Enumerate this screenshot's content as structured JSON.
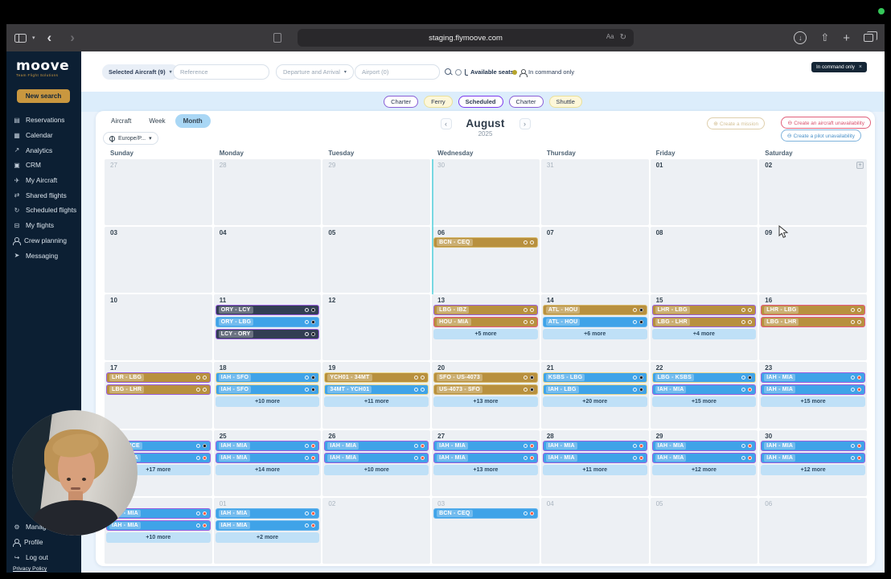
{
  "browser": {
    "url": "staging.flymoove.com"
  },
  "sidebar": {
    "logo": "moove",
    "tagline": "Team Flight Solutions",
    "new_search_label": "New search",
    "items": [
      {
        "label": "Reservations",
        "icon": "reservations-icon",
        "glyph": "▤"
      },
      {
        "label": "Calendar",
        "icon": "calendar-icon",
        "glyph": "▦"
      },
      {
        "label": "Analytics",
        "icon": "analytics-icon",
        "glyph": "↗"
      },
      {
        "label": "CRM",
        "icon": "crm-icon",
        "glyph": "▣"
      },
      {
        "label": "My Aircraft",
        "icon": "my-aircraft-icon",
        "glyph": "✈"
      },
      {
        "label": "Shared flights",
        "icon": "shared-flights-icon",
        "glyph": "⇄"
      },
      {
        "label": "Scheduled flights",
        "icon": "scheduled-flights-icon",
        "glyph": "↻"
      },
      {
        "label": "My flights",
        "icon": "my-flights-icon",
        "glyph": "⊟"
      },
      {
        "label": "Crew planning",
        "icon": "crew-planning-icon",
        "glyph": ""
      },
      {
        "label": "Messaging",
        "icon": "messaging-icon",
        "glyph": "➤"
      }
    ],
    "footer_items": [
      {
        "label": "Manage",
        "icon": "gear-icon",
        "glyph": "⚙"
      },
      {
        "label": "Profile",
        "icon": "profile-icon",
        "glyph": ""
      },
      {
        "label": "Log out",
        "icon": "logout-icon",
        "glyph": "↪"
      }
    ],
    "privacy_policy": "Privacy Policy"
  },
  "filters": {
    "selected_aircraft": "Selected Aircraft (9)",
    "reference_placeholder": "Reference",
    "departure_arrival": "Departure and Arrival",
    "airport_placeholder": "Airport (0)",
    "available_seats": "Available seats",
    "in_command_only": "In command only",
    "active_filter_chip": "In command only",
    "chip_close": "×"
  },
  "type_pills": [
    {
      "label": "Charter",
      "variant": "purple"
    },
    {
      "label": "Ferry",
      "variant": "yellow"
    },
    {
      "label": "Scheduled",
      "variant": "purple-active"
    },
    {
      "label": "Charter",
      "variant": "purple"
    },
    {
      "label": "Shuttle",
      "variant": "yellow"
    }
  ],
  "calendar_toolbar": {
    "view_tabs": [
      "Aircraft",
      "Week",
      "Month"
    ],
    "active_view": "Month",
    "timezone": "Europe/P...",
    "month": "August",
    "year": "2025",
    "create_mission": "Create a mission",
    "create_aircraft_unavailability": "Create an aircraft unavailability",
    "create_pilot_unavailability": "Create a pilot unavailability"
  },
  "calendar": {
    "day_headers": [
      "Sunday",
      "Monday",
      "Tuesday",
      "Wednesday",
      "Thursday",
      "Friday",
      "Saturday"
    ],
    "weeks": [
      [
        {
          "date": "27",
          "other": true
        },
        {
          "date": "28",
          "other": true
        },
        {
          "date": "29",
          "other": true
        },
        {
          "date": "30",
          "other": true
        },
        {
          "date": "31",
          "other": true
        },
        {
          "date": "01"
        },
        {
          "date": "02",
          "add_icon": true
        }
      ],
      [
        {
          "date": "03"
        },
        {
          "date": "04"
        },
        {
          "date": "05"
        },
        {
          "date": "06",
          "events": [
            {
              "label": "BCN - CEQ",
              "bg": "gold",
              "border": "goldlight",
              "dot": "white"
            }
          ]
        },
        {
          "date": "07"
        },
        {
          "date": "08"
        },
        {
          "date": "09"
        }
      ],
      [
        {
          "date": "10"
        },
        {
          "date": "11",
          "events": [
            {
              "label": "ORY - LCY",
              "bg": "navy",
              "border": "purple",
              "dot": "dark"
            },
            {
              "label": "ORY - LBG",
              "bg": "blue",
              "border": "blue",
              "dot": "dark"
            },
            {
              "label": "LCY - ORY",
              "bg": "navy",
              "border": "purple",
              "dot": "dark"
            }
          ]
        },
        {
          "date": "12"
        },
        {
          "date": "13",
          "events": [
            {
              "label": "LBG - IBZ",
              "bg": "gold",
              "border": "purple",
              "dot": "white"
            },
            {
              "label": "HOU - MIA",
              "bg": "gold",
              "border": "pink",
              "dot": "white"
            }
          ],
          "more": "+5 more"
        },
        {
          "date": "14",
          "events": [
            {
              "label": "ATL - HOU",
              "bg": "gold",
              "border": "goldlight",
              "dot": "dark"
            },
            {
              "label": "ATL - HOU",
              "bg": "blue",
              "border": "blue",
              "dot": "dark"
            }
          ],
          "more": "+6 more"
        },
        {
          "date": "15",
          "events": [
            {
              "label": "LHR - LBG",
              "bg": "gold",
              "border": "purple",
              "dot": "white"
            },
            {
              "label": "LBG - LHR",
              "bg": "gold",
              "border": "purple",
              "dot": "white"
            }
          ],
          "more": "+4 more"
        },
        {
          "date": "16",
          "events": [
            {
              "label": "LHR - LBG",
              "bg": "gold",
              "border": "pink",
              "dot": "white"
            },
            {
              "label": "LBG - LHR",
              "bg": "gold",
              "border": "pink",
              "dot": "white"
            }
          ]
        }
      ],
      [
        {
          "date": "17",
          "events": [
            {
              "label": "LHR - LBG",
              "bg": "gold",
              "border": "purple",
              "dot": "white"
            },
            {
              "label": "LBG - LHR",
              "bg": "gold",
              "border": "purple",
              "dot": "white"
            }
          ]
        },
        {
          "date": "18",
          "events": [
            {
              "label": "IAH - SFO",
              "bg": "blue",
              "border": "yellow",
              "dot": "dark"
            },
            {
              "label": "IAH - SFO",
              "bg": "blue",
              "border": "yellow",
              "dot": "dark"
            }
          ],
          "more": "+10 more"
        },
        {
          "date": "19",
          "events": [
            {
              "label": "YCH01 - 34MT",
              "bg": "gold",
              "border": "yellow",
              "dot": "white"
            },
            {
              "label": "34MT - YCH01",
              "bg": "blue",
              "border": "yellow",
              "dot": "white"
            }
          ],
          "more": "+11 more"
        },
        {
          "date": "20",
          "events": [
            {
              "label": "SFO - US-4073",
              "bg": "gold",
              "border": "goldlight",
              "dot": "dark"
            },
            {
              "label": "US-4073 - SFO",
              "bg": "gold",
              "border": "goldlight",
              "dot": "dark"
            }
          ],
          "more": "+13 more"
        },
        {
          "date": "21",
          "events": [
            {
              "label": "KSBS - LBG",
              "bg": "blue",
              "border": "yellow",
              "dot": "dark"
            },
            {
              "label": "IAH - LBG",
              "bg": "blue",
              "border": "yellow",
              "dot": "dark"
            }
          ],
          "more": "+20 more"
        },
        {
          "date": "22",
          "events": [
            {
              "label": "LBG - KSBS",
              "bg": "blue",
              "border": "yellow",
              "dot": "dark"
            },
            {
              "label": "IAH - MIA",
              "bg": "blue",
              "border": "purple",
              "dot": "red"
            }
          ],
          "more": "+15 more"
        },
        {
          "date": "23",
          "events": [
            {
              "label": "IAH - MIA",
              "bg": "blue",
              "border": "purple",
              "dot": "red"
            },
            {
              "label": "IAH - MIA",
              "bg": "blue",
              "border": "purple",
              "dot": "red"
            }
          ],
          "more": "+15 more"
        }
      ],
      [
        {
          "date": "24",
          "events": [
            {
              "label": "IAH - NCE",
              "bg": "blue",
              "border": "purple",
              "dot": "dark"
            },
            {
              "label": "IAH - MIA",
              "bg": "blue",
              "border": "purple",
              "dot": "red"
            }
          ],
          "more": "+17 more"
        },
        {
          "date": "25",
          "events": [
            {
              "label": "IAH - MIA",
              "bg": "blue",
              "border": "purple",
              "dot": "red"
            },
            {
              "label": "IAH - MIA",
              "bg": "blue",
              "border": "purple",
              "dot": "red"
            }
          ],
          "more": "+14 more"
        },
        {
          "date": "26",
          "events": [
            {
              "label": "IAH - MIA",
              "bg": "blue",
              "border": "purple",
              "dot": "red"
            },
            {
              "label": "IAH - MIA",
              "bg": "blue",
              "border": "purple",
              "dot": "red"
            }
          ],
          "more": "+10 more"
        },
        {
          "date": "27",
          "events": [
            {
              "label": "IAH - MIA",
              "bg": "blue",
              "border": "purple",
              "dot": "red"
            },
            {
              "label": "IAH - MIA",
              "bg": "blue",
              "border": "purple",
              "dot": "red"
            }
          ],
          "more": "+13 more"
        },
        {
          "date": "28",
          "events": [
            {
              "label": "IAH - MIA",
              "bg": "blue",
              "border": "purple",
              "dot": "red"
            },
            {
              "label": "IAH - MIA",
              "bg": "blue",
              "border": "purple",
              "dot": "red"
            }
          ],
          "more": "+11 more"
        },
        {
          "date": "29",
          "events": [
            {
              "label": "IAH - MIA",
              "bg": "blue",
              "border": "purple",
              "dot": "red"
            },
            {
              "label": "IAH - MIA",
              "bg": "blue",
              "border": "purple",
              "dot": "red"
            }
          ],
          "more": "+12 more"
        },
        {
          "date": "30",
          "events": [
            {
              "label": "IAH - MIA",
              "bg": "blue",
              "border": "purple",
              "dot": "red"
            },
            {
              "label": "IAH - MIA",
              "bg": "blue",
              "border": "purple",
              "dot": "red"
            }
          ],
          "more": "+12 more"
        }
      ],
      [
        {
          "date": "31",
          "events": [
            {
              "label": "IAH - MIA",
              "bg": "blue",
              "border": "purple",
              "dot": "red"
            },
            {
              "label": "IAH - MIA",
              "bg": "blue",
              "border": "purple",
              "dot": "red"
            }
          ],
          "more": "+10 more"
        },
        {
          "date": "01",
          "other": true,
          "events": [
            {
              "label": "IAH - MIA",
              "bg": "blue",
              "border": "blue",
              "dot": "red"
            },
            {
              "label": "IAH - MIA",
              "bg": "blue",
              "border": "blue",
              "dot": "red"
            }
          ],
          "more": "+2 more"
        },
        {
          "date": "02",
          "other": true
        },
        {
          "date": "03",
          "other": true,
          "events": [
            {
              "label": "BCN - CEQ",
              "bg": "blue",
              "border": "blue",
              "dot": "red"
            }
          ]
        },
        {
          "date": "04",
          "other": true
        },
        {
          "date": "05",
          "other": true
        },
        {
          "date": "06",
          "other": true
        }
      ]
    ]
  },
  "colors": {
    "event_gold": "#b8903e",
    "event_blue": "#3fa3e8",
    "event_navy": "#323e53",
    "border_purple": "#9a5fe0",
    "border_pink": "#e65881",
    "border_yellow": "#ecd98f",
    "accent_gold": "#c9973f",
    "sidebar_navy": "#0c1f33",
    "active_chip": "#152636",
    "more_bar": "#bfe0f7"
  }
}
